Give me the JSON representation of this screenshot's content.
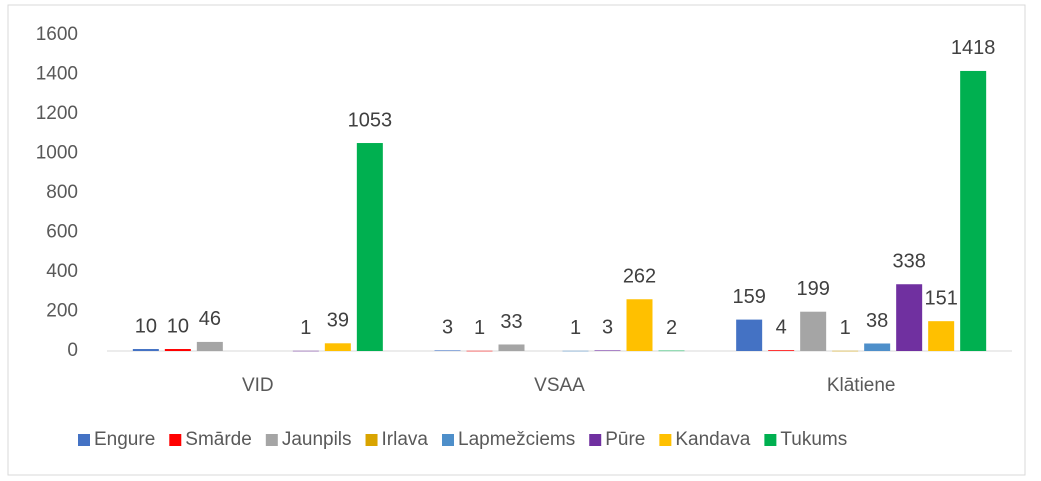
{
  "chart_data": {
    "type": "bar",
    "categories": [
      "VID",
      "VSAA",
      "Klātiene"
    ],
    "series": [
      {
        "name": "Engure",
        "color": "#4472c4",
        "values": [
          10,
          3,
          159
        ]
      },
      {
        "name": "Smārde",
        "color": "#ff0000",
        "values": [
          10,
          1,
          4
        ]
      },
      {
        "name": "Jaunpils",
        "color": "#a5a5a5",
        "values": [
          46,
          33,
          199
        ]
      },
      {
        "name": "Irlava",
        "color": "#d9a400",
        "values": [
          null,
          null,
          1
        ]
      },
      {
        "name": "Lapmežciems",
        "color": "#4e8fca",
        "values": [
          null,
          1,
          38
        ]
      },
      {
        "name": "Pūre",
        "color": "#7030a0",
        "values": [
          1,
          3,
          338
        ]
      },
      {
        "name": "Kandava",
        "color": "#ffc000",
        "values": [
          39,
          262,
          151
        ]
      },
      {
        "name": "Tukums",
        "color": "#00b050",
        "values": [
          1053,
          2,
          1418
        ]
      }
    ],
    "ylim": [
      0,
      1600
    ],
    "yticks": [
      0,
      200,
      400,
      600,
      800,
      1000,
      1200,
      1400,
      1600
    ],
    "grid": false,
    "legend": "bottom"
  }
}
